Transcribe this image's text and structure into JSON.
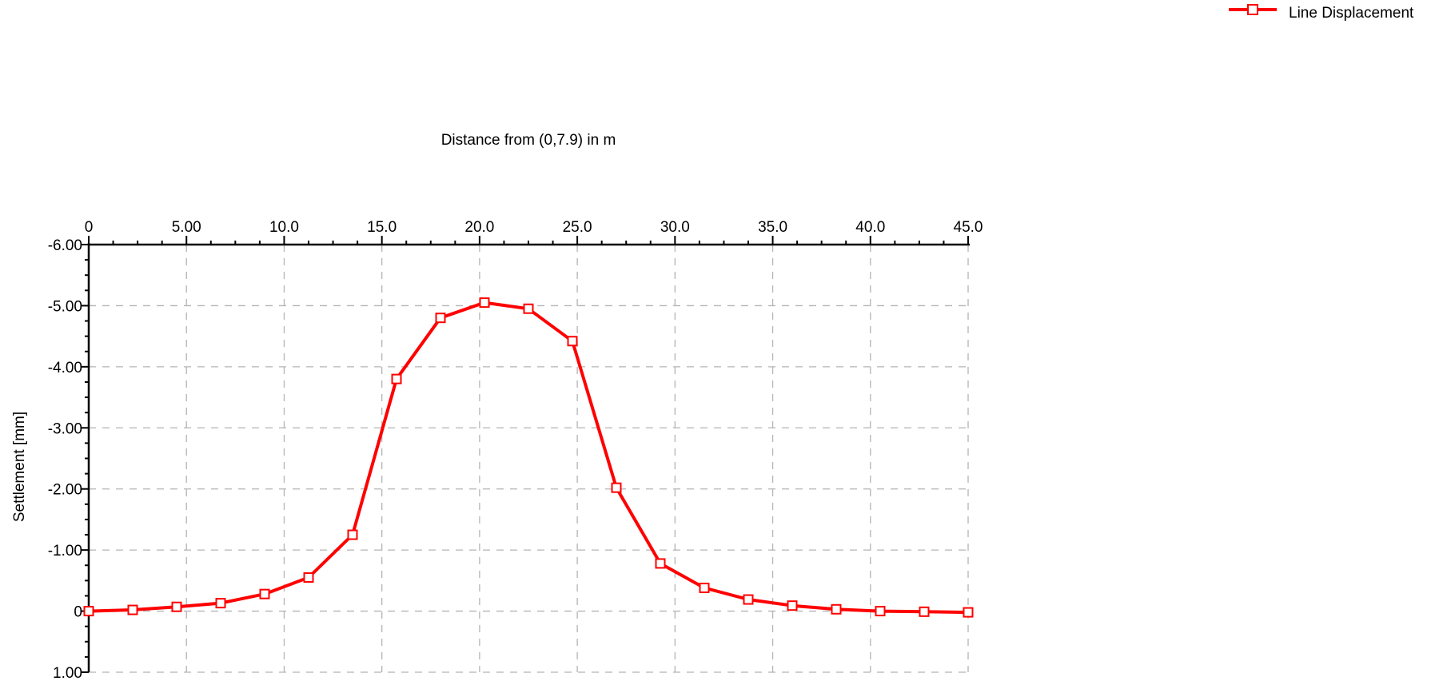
{
  "chart_data": {
    "type": "line",
    "xlabel": "Distance from (0,7.9) in m",
    "ylabel": "Settlement [mm]",
    "xlim": [
      0,
      45
    ],
    "ylim": [
      -6,
      1
    ],
    "y_inverted": true,
    "x_axis_position": "top",
    "grid": true,
    "grid_style": "dashed",
    "legend_position": "top-right",
    "x_ticks": [
      0,
      5,
      10,
      15,
      20,
      25,
      30,
      35,
      40,
      45
    ],
    "x_tick_labels": [
      "0",
      "5.00",
      "10.0",
      "15.0",
      "20.0",
      "25.0",
      "30.0",
      "35.0",
      "40.0",
      "45.0"
    ],
    "y_ticks": [
      -6,
      -5,
      -4,
      -3,
      -2,
      -1,
      0,
      1
    ],
    "y_tick_labels": [
      "-6.00",
      "-5.00",
      "-4.00",
      "-3.00",
      "-2.00",
      "-1.00",
      "0",
      "1.00"
    ],
    "series": [
      {
        "name": "Line Displacement",
        "color": "#ff0000",
        "marker": "square",
        "x": [
          0,
          2.25,
          4.5,
          6.75,
          9.0,
          11.25,
          13.5,
          15.75,
          18.0,
          20.25,
          22.5,
          24.75,
          27.0,
          29.25,
          31.5,
          33.75,
          36.0,
          38.25,
          40.5,
          42.75,
          45.0
        ],
        "y": [
          0.0,
          -0.02,
          -0.07,
          -0.13,
          -0.28,
          -0.55,
          -1.25,
          -3.8,
          -4.8,
          -5.05,
          -4.95,
          -4.42,
          -2.02,
          -0.78,
          -0.38,
          -0.19,
          -0.09,
          -0.03,
          0.0,
          0.01,
          0.02
        ]
      }
    ]
  }
}
